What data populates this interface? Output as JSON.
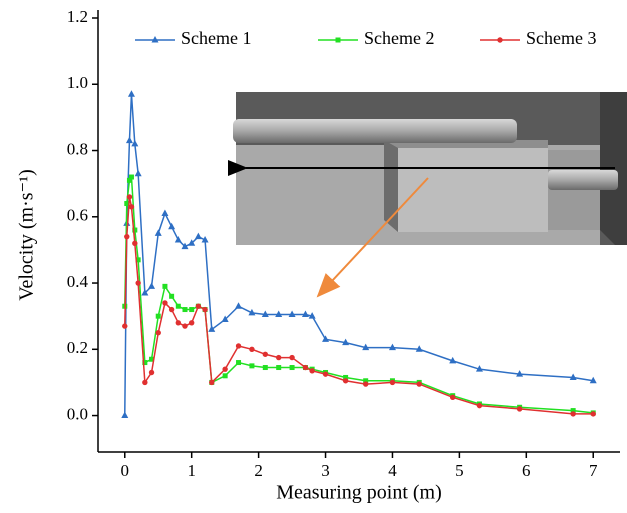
{
  "chart_data": {
    "type": "line",
    "x_label": "Measuring point (m)",
    "y_label": "Velocity (m·s⁻¹)",
    "x": [
      0,
      0.03,
      0.07,
      0.1,
      0.15,
      0.2,
      0.3,
      0.4,
      0.5,
      0.6,
      0.7,
      0.8,
      0.9,
      1.0,
      1.1,
      1.2,
      1.3,
      1.5,
      1.7,
      1.9,
      2.1,
      2.3,
      2.5,
      2.7,
      2.8,
      3.0,
      3.3,
      3.6,
      4.0,
      4.4,
      4.9,
      5.3,
      5.9,
      6.7,
      7.0
    ],
    "series": [
      {
        "name": "Scheme 1",
        "color": "#2e6fc4",
        "marker": "triangle",
        "values": [
          0,
          0.58,
          0.83,
          0.97,
          0.82,
          0.73,
          0.37,
          0.39,
          0.55,
          0.61,
          0.57,
          0.53,
          0.51,
          0.52,
          0.54,
          0.53,
          0.26,
          0.29,
          0.33,
          0.31,
          0.305,
          0.305,
          0.305,
          0.305,
          0.3,
          0.23,
          0.22,
          0.205,
          0.205,
          0.2,
          0.165,
          0.14,
          0.125,
          0.115,
          0.105
        ]
      },
      {
        "name": "Scheme 2",
        "color": "#22e022",
        "marker": "square",
        "values": [
          0.33,
          0.64,
          0.71,
          0.72,
          0.56,
          0.47,
          0.16,
          0.17,
          0.3,
          0.39,
          0.36,
          0.33,
          0.32,
          0.32,
          0.33,
          0.32,
          0.1,
          0.12,
          0.16,
          0.15,
          0.145,
          0.145,
          0.145,
          0.145,
          0.14,
          0.13,
          0.115,
          0.105,
          0.105,
          0.1,
          0.06,
          0.035,
          0.025,
          0.015,
          0.008
        ]
      },
      {
        "name": "Scheme 3",
        "color": "#e03030",
        "marker": "circle",
        "values": [
          0.27,
          0.54,
          0.66,
          0.63,
          0.52,
          0.4,
          0.1,
          0.13,
          0.25,
          0.34,
          0.32,
          0.28,
          0.27,
          0.28,
          0.33,
          0.32,
          0.1,
          0.14,
          0.21,
          0.2,
          0.185,
          0.175,
          0.175,
          0.145,
          0.135,
          0.125,
          0.105,
          0.095,
          0.1,
          0.095,
          0.055,
          0.03,
          0.02,
          0.005,
          0.005
        ]
      }
    ],
    "xlim": [
      -0.4,
      7.4
    ],
    "ylim": [
      -0.11,
      1.2
    ],
    "xticks": [
      0,
      1,
      2,
      3,
      4,
      5,
      6,
      7
    ],
    "yticks": [
      {
        "value": 0,
        "label": "0.0"
      },
      0.2,
      0.4,
      0.6,
      0.8,
      {
        "value": 1,
        "label": "1.0"
      },
      1.2
    ],
    "legend": "top"
  }
}
